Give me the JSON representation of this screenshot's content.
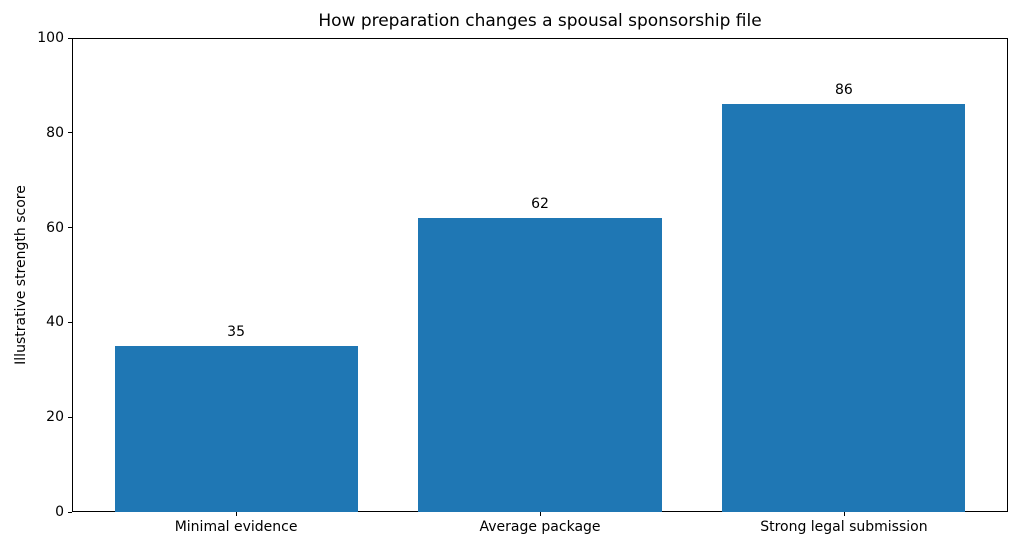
{
  "chart_data": {
    "type": "bar",
    "title": "How preparation changes a spousal sponsorship file",
    "categories": [
      "Minimal evidence",
      "Average package",
      "Strong legal submission"
    ],
    "values": [
      35,
      62,
      86
    ],
    "value_labels": [
      "35",
      "62",
      "86"
    ],
    "xlabel": "",
    "ylabel": "Illustrative strength score",
    "ylim": [
      0,
      100
    ],
    "yticks": [
      0,
      20,
      40,
      60,
      80,
      100
    ],
    "bar_width_fraction": 0.8,
    "bar_color": "#1f77b4",
    "text_color": "#000000",
    "background_color": "#ffffff",
    "grid": false,
    "legend": "none"
  }
}
